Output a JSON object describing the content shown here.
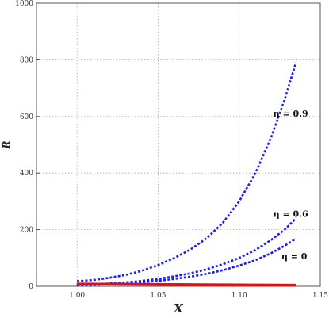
{
  "chart_data": {
    "type": "line",
    "title": "",
    "xlabel": "X",
    "ylabel": "R",
    "xlim": [
      0.975,
      1.15
    ],
    "ylim": [
      0,
      1000
    ],
    "grid": true,
    "x_ticks": [
      1.0,
      1.05,
      1.1,
      1.15
    ],
    "x_tick_labels": [
      "1.00",
      "1.05",
      "1.10",
      "1.15"
    ],
    "y_ticks": [
      0,
      200,
      400,
      600,
      800,
      1000
    ],
    "y_tick_labels": [
      "0",
      "200",
      "400",
      "600",
      "800",
      "1000"
    ],
    "series": [
      {
        "name": "η = 0.9",
        "color": "#1a1aff",
        "style": "dashed",
        "x": [
          1.0,
          1.01,
          1.02,
          1.03,
          1.04,
          1.05,
          1.06,
          1.07,
          1.08,
          1.09,
          1.1,
          1.11,
          1.12,
          1.128,
          1.135
        ],
        "y": [
          18,
          22,
          30,
          40,
          55,
          75,
          100,
          130,
          170,
          225,
          300,
          400,
          530,
          660,
          790
        ]
      },
      {
        "name": "η = 0.6",
        "color": "#1a1aff",
        "style": "dashed",
        "x": [
          1.0,
          1.01,
          1.02,
          1.03,
          1.04,
          1.05,
          1.06,
          1.07,
          1.08,
          1.09,
          1.1,
          1.11,
          1.12,
          1.128,
          1.135
        ],
        "y": [
          5,
          7,
          10,
          14,
          19,
          26,
          35,
          46,
          60,
          78,
          100,
          128,
          165,
          200,
          240
        ]
      },
      {
        "name": "η = 0",
        "color": "#1a1aff",
        "style": "dashed",
        "x": [
          1.0,
          1.01,
          1.02,
          1.03,
          1.04,
          1.05,
          1.06,
          1.07,
          1.08,
          1.09,
          1.1,
          1.11,
          1.12,
          1.128,
          1.135
        ],
        "y": [
          4,
          5,
          7,
          10,
          14,
          19,
          26,
          34,
          44,
          57,
          73,
          92,
          118,
          143,
          168
        ]
      },
      {
        "color": "#dd1111",
        "style": "solid",
        "x": [
          1.0,
          1.135
        ],
        "y": [
          8,
          4
        ]
      }
    ],
    "annotations": [
      {
        "text": "η = 0.9",
        "x": 1.121,
        "y": 600
      },
      {
        "text": "η = 0.6",
        "x": 1.121,
        "y": 245
      },
      {
        "text": "η = 0",
        "x": 1.126,
        "y": 95
      }
    ]
  }
}
